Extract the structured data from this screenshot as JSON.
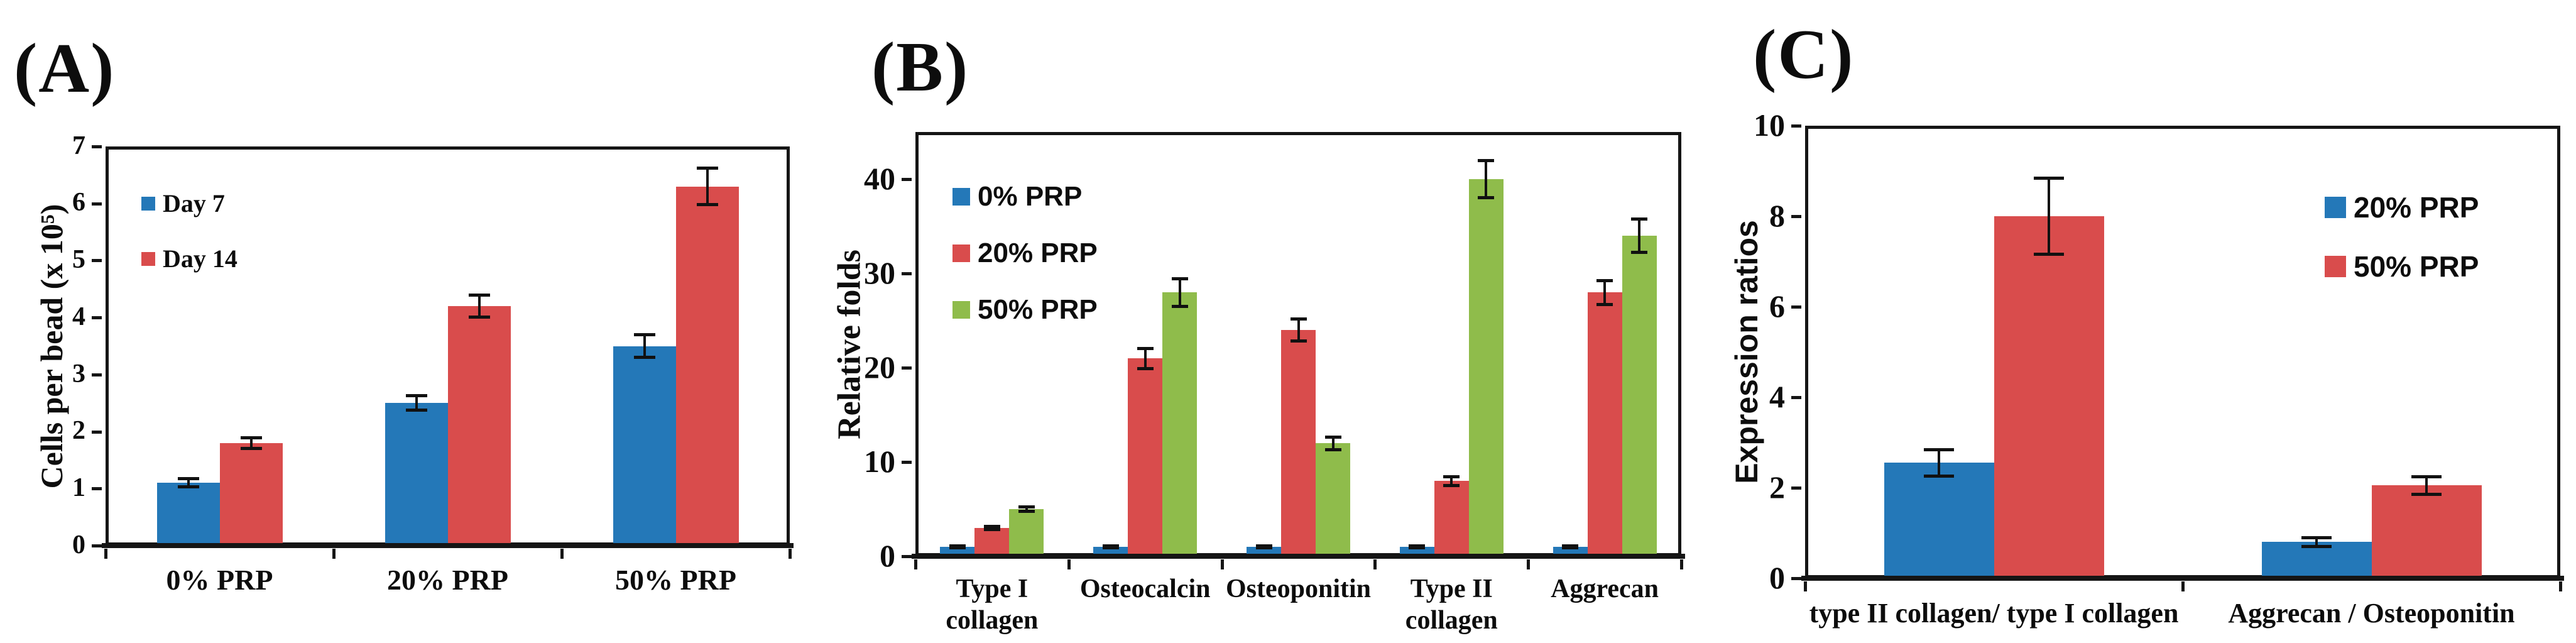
{
  "figure": {
    "background": "#ffffff",
    "axis_color": "#151515",
    "text_color": "#0d0d0d",
    "series_palette": {
      "blue": "#2478B8",
      "red": "#D94C4C",
      "green": "#8FBC4B"
    }
  },
  "chart_data": [
    {
      "id": "A",
      "panel_label": "(A)",
      "type": "bar",
      "title": "",
      "xlabel": "",
      "ylabel": "Cells per bead (x 10⁵)",
      "ylim": [
        0,
        7
      ],
      "yticks": [
        0,
        1,
        2,
        3,
        4,
        5,
        6,
        7
      ],
      "grid": false,
      "legend_position": "inside-top-left",
      "error_bars": true,
      "categories": [
        "0% PRP",
        "20% PRP",
        "50% PRP"
      ],
      "series": [
        {
          "name": "Day 7",
          "color": "#2478B8",
          "values": [
            1.1,
            2.5,
            3.5
          ],
          "errors": [
            0.08,
            0.13,
            0.2
          ]
        },
        {
          "name": "Day 14",
          "color": "#D94C4C",
          "values": [
            1.8,
            4.2,
            6.3
          ],
          "errors": [
            0.1,
            0.2,
            0.32
          ]
        }
      ]
    },
    {
      "id": "B",
      "panel_label": "(B)",
      "type": "bar",
      "title": "",
      "xlabel": "",
      "ylabel": "Relative folds",
      "ylim": [
        0,
        45
      ],
      "yticks": [
        0,
        10,
        20,
        30,
        40
      ],
      "grid": false,
      "legend_position": "inside-top-left",
      "error_bars": true,
      "categories": [
        "Type I\ncollagen",
        "Osteocalcin",
        "Osteoponitin",
        "Type II\ncollagen",
        "Aggrecan"
      ],
      "series": [
        {
          "name": "0% PRP",
          "color": "#2478B8",
          "values": [
            1,
            1,
            1,
            1,
            1
          ],
          "errors": [
            0.15,
            0.15,
            0.15,
            0.15,
            0.15
          ]
        },
        {
          "name": "20% PRP",
          "color": "#D94C4C",
          "values": [
            3,
            21,
            24,
            8,
            28
          ],
          "errors": [
            0.2,
            1.1,
            1.2,
            0.5,
            1.3
          ]
        },
        {
          "name": "50% PRP",
          "color": "#8FBC4B",
          "values": [
            5,
            28,
            12,
            40,
            34
          ],
          "errors": [
            0.25,
            1.5,
            0.7,
            2,
            1.8
          ]
        }
      ]
    },
    {
      "id": "C",
      "panel_label": "(C)",
      "type": "bar",
      "title": "",
      "xlabel": "",
      "ylabel": "Expression ratios",
      "ylim": [
        0,
        10
      ],
      "yticks": [
        0,
        2,
        4,
        6,
        8,
        10
      ],
      "grid": false,
      "legend_position": "inside-top-right",
      "error_bars": true,
      "categories": [
        "type II collagen/ type I collagen",
        "Aggrecan / Osteoponitin"
      ],
      "series": [
        {
          "name": "20% PRP",
          "color": "#2478B8",
          "values": [
            2.55,
            0.8
          ],
          "errors": [
            0.3,
            0.1
          ]
        },
        {
          "name": "50% PRP",
          "color": "#D94C4C",
          "values": [
            8.0,
            2.05
          ],
          "errors": [
            0.85,
            0.2
          ]
        }
      ]
    }
  ]
}
